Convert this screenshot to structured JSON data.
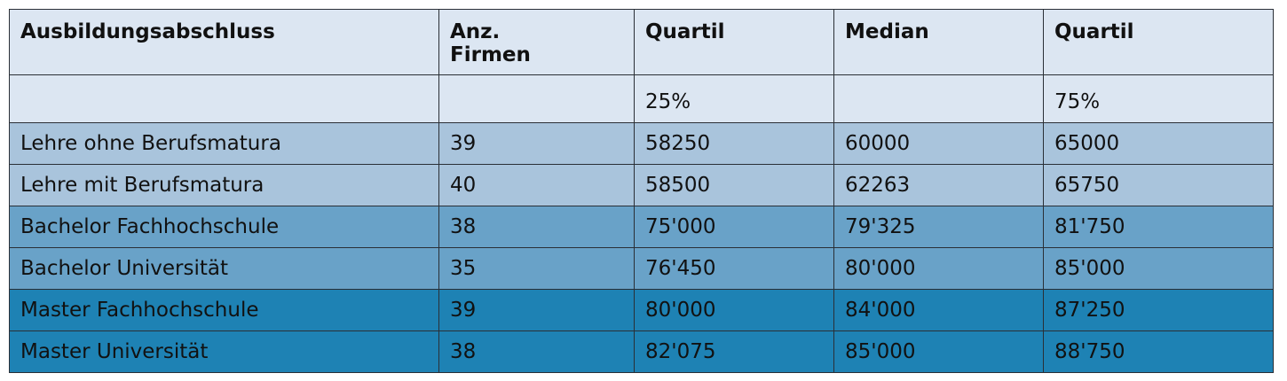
{
  "table": {
    "headers": [
      "Ausbildungsabschluss",
      "Anz. Firmen",
      "Quartil",
      "Median",
      "Quartil"
    ],
    "subheaders": [
      "",
      "",
      "25%",
      "",
      "75%"
    ],
    "rows": [
      [
        "Lehre ohne Berufsmatura",
        "39",
        "58250",
        "60000",
        "65000"
      ],
      [
        "Lehre mit Berufsmatura",
        "40",
        "58500",
        "62263",
        "65750"
      ],
      [
        "Bachelor Fachhochschule",
        "38",
        "75'000",
        "79'325",
        "81'750"
      ],
      [
        "Bachelor Universität",
        "35",
        "76'450",
        "80'000",
        "85'000"
      ],
      [
        "Master Fachhochschule",
        "39",
        "80'000",
        "84'000",
        "87'250"
      ],
      [
        "Master Universität",
        "38",
        "82'075",
        "85'000",
        "88'750"
      ]
    ],
    "colors": {
      "header": "#dce6f2",
      "light": "#a9c4dc",
      "mid": "#69a2c8",
      "dark": "#1e82b4",
      "border": "#2a2f36"
    }
  }
}
